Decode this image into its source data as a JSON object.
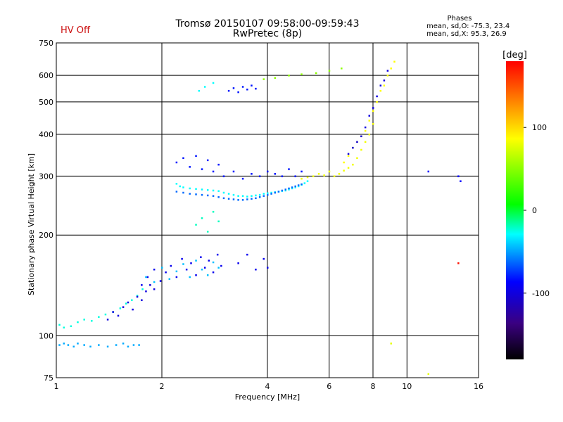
{
  "header": {
    "status": "HV Off",
    "title": "Tromsø 20150107 09:58:00-09:59:43",
    "subtitle": "RwPretec (8p)",
    "phase_label": "Phases",
    "phase_stats_o": "mean, sd,O: -75.3, 23.4",
    "phase_stats_x": "mean, sd,X:  95.3, 26.9"
  },
  "colors": {
    "status": "#cc1010",
    "grid": "#000000",
    "colormap": [
      "#000000",
      "#3a0080",
      "#0000ff",
      "#00ffff",
      "#00ff00",
      "#ffff00",
      "#ff0000"
    ]
  },
  "chart_data": {
    "type": "scatter",
    "xscale": "log",
    "yscale": "log",
    "xlabel": "Frequency [MHz]",
    "ylabel": "Stationary phase Virtual Height [km]",
    "xlim": [
      1,
      16
    ],
    "ylim": [
      75,
      750
    ],
    "xticks": [
      1,
      2,
      4,
      6,
      8,
      10,
      16
    ],
    "xgrid": [
      2,
      4,
      6,
      8,
      10
    ],
    "yticks": [
      75,
      100,
      200,
      300,
      400,
      500,
      600,
      750
    ],
    "ygrid": [
      100,
      200,
      300,
      400,
      500,
      600
    ],
    "grid": true,
    "colorbar": {
      "label": "[deg]",
      "range": [
        -180,
        180
      ],
      "ticks": [
        {
          "value": 100,
          "label": "100"
        },
        {
          "value": 0,
          "label": "0"
        },
        {
          "value": -100,
          "label": "-100"
        }
      ]
    },
    "series": [
      {
        "x": [
          1.02,
          1.05,
          1.08,
          1.12,
          1.15,
          1.2,
          1.25,
          1.32,
          1.4,
          1.48,
          1.55,
          1.6,
          1.66,
          1.72
        ],
        "y": [
          94,
          95,
          94,
          93,
          95,
          94,
          93,
          94,
          93,
          94,
          95,
          93,
          94,
          94
        ],
        "phase": -60
      },
      {
        "x": [
          1.02,
          1.05,
          1.1,
          1.15,
          1.2,
          1.26,
          1.32,
          1.38,
          1.45,
          1.52,
          1.58,
          1.64,
          1.7,
          1.76
        ],
        "y": [
          108,
          106,
          107,
          110,
          112,
          111,
          114,
          116,
          118,
          121,
          125,
          128,
          132,
          138
        ],
        "phase": -35
      },
      {
        "x": [
          1.4,
          1.45,
          1.5,
          1.55,
          1.6,
          1.65,
          1.7,
          1.75,
          1.8,
          1.85,
          1.9
        ],
        "y": [
          112,
          118,
          115,
          122,
          126,
          120,
          131,
          128,
          136,
          142,
          138
        ],
        "phase": -110
      },
      {
        "x": [
          1.75,
          1.82,
          1.9,
          1.98,
          2.05,
          2.12,
          2.2,
          2.28,
          2.35,
          2.42,
          2.5,
          2.58,
          2.65,
          2.72,
          2.8,
          2.88,
          2.95
        ],
        "y": [
          142,
          150,
          158,
          146,
          155,
          162,
          150,
          170,
          158,
          165,
          152,
          172,
          160,
          168,
          155,
          175,
          162
        ],
        "phase": -105
      },
      {
        "x": [
          1.8,
          1.9,
          2.0,
          2.1,
          2.2,
          2.3,
          2.4,
          2.5,
          2.6,
          2.7,
          2.8,
          2.9
        ],
        "y": [
          150,
          145,
          160,
          148,
          156,
          164,
          150,
          168,
          158,
          152,
          166,
          160
        ],
        "phase": -55
      },
      {
        "x": [
          2.2,
          2.25,
          2.3,
          2.4,
          2.5,
          2.6,
          2.7,
          2.8,
          2.9,
          3.0,
          3.1,
          3.2,
          3.3,
          3.4,
          3.5,
          3.6,
          3.7,
          3.8,
          3.9,
          4.0,
          4.1,
          4.2,
          4.3,
          4.4,
          4.5,
          4.6,
          4.7,
          4.8,
          4.9,
          5.0,
          5.1,
          5.2
        ],
        "y": [
          285,
          280,
          278,
          276,
          275,
          274,
          273,
          272,
          271,
          268,
          266,
          264,
          262,
          262,
          261,
          262,
          263,
          264,
          266,
          267,
          268,
          269,
          270,
          271,
          272,
          274,
          276,
          278,
          280,
          283,
          286,
          290
        ],
        "phase": -40
      },
      {
        "x": [
          2.2,
          2.3,
          2.4,
          2.5,
          2.6,
          2.7,
          2.8,
          2.9,
          3.0,
          3.1,
          3.2,
          3.3,
          3.4,
          3.5,
          3.6,
          3.7,
          3.8,
          3.9,
          4.0,
          4.1,
          4.2,
          4.3,
          4.4,
          4.5,
          4.6,
          4.7,
          4.8,
          4.9,
          5.0
        ],
        "y": [
          270,
          268,
          266,
          265,
          264,
          263,
          262,
          260,
          258,
          257,
          256,
          255,
          255,
          256,
          257,
          258,
          260,
          262,
          264,
          266,
          268,
          270,
          272,
          274,
          276,
          278,
          280,
          282,
          284
        ],
        "phase": -75
      },
      {
        "x": [
          2.2,
          2.3,
          2.4,
          2.5,
          2.6,
          2.7,
          2.8,
          2.9,
          3.0,
          3.2,
          3.4,
          3.6,
          3.8,
          4.0,
          4.2,
          4.4,
          4.6,
          4.8,
          5.0
        ],
        "y": [
          330,
          340,
          320,
          345,
          315,
          335,
          310,
          325,
          300,
          310,
          295,
          305,
          300,
          310,
          305,
          300,
          315,
          300,
          310
        ],
        "phase": -95
      },
      {
        "x": [
          5.0,
          5.2,
          5.4,
          5.6,
          5.8,
          6.0,
          6.2,
          6.4,
          6.6,
          6.8,
          7.0,
          7.2,
          7.4,
          7.6,
          7.8,
          8.0
        ],
        "y": [
          295,
          298,
          300,
          305,
          302,
          310,
          300,
          305,
          312,
          318,
          325,
          340,
          360,
          380,
          400,
          430
        ],
        "phase": 95
      },
      {
        "x": [
          6.6,
          6.8,
          7.0,
          7.2,
          7.4,
          7.6,
          7.8,
          8.0,
          8.2,
          8.4,
          8.6,
          8.8,
          9.0,
          9.2
        ],
        "y": [
          330,
          345,
          365,
          380,
          395,
          410,
          440,
          470,
          500,
          540,
          560,
          600,
          630,
          660
        ],
        "phase": 100
      },
      {
        "x": [
          6.8,
          7.0,
          7.2,
          7.4,
          7.6,
          7.8,
          8.0,
          8.2,
          8.4,
          8.6,
          8.8
        ],
        "y": [
          350,
          365,
          380,
          395,
          420,
          455,
          480,
          520,
          560,
          580,
          620
        ],
        "phase": -110
      },
      {
        "x": [
          3.9,
          4.2,
          4.6,
          5.0,
          5.5,
          6.0,
          6.5
        ],
        "y": [
          585,
          590,
          600,
          605,
          610,
          620,
          630
        ],
        "phase": 55
      },
      {
        "x": [
          3.1,
          3.2,
          3.3,
          3.4,
          3.5,
          3.6,
          3.7
        ],
        "y": [
          540,
          550,
          535,
          555,
          545,
          560,
          548
        ],
        "phase": -95
      },
      {
        "x": [
          2.55,
          2.65,
          2.8
        ],
        "y": [
          540,
          555,
          570
        ],
        "phase": -40
      },
      {
        "x": [
          2.5,
          2.6,
          2.7,
          2.8,
          2.9
        ],
        "y": [
          215,
          225,
          205,
          235,
          220
        ],
        "phase": -30
      },
      {
        "x": [
          3.3,
          3.5,
          3.7,
          3.9,
          4.0
        ],
        "y": [
          165,
          175,
          158,
          170,
          160
        ],
        "phase": -105
      },
      {
        "x": [
          11.5,
          14.0,
          14.2
        ],
        "y": [
          310,
          300,
          290
        ],
        "phase": -100
      },
      {
        "x": [
          14.0
        ],
        "y": [
          165
        ],
        "phase": 175
      },
      {
        "x": [
          9.0,
          11.5
        ],
        "y": [
          95,
          77
        ],
        "phase": 90
      }
    ]
  }
}
